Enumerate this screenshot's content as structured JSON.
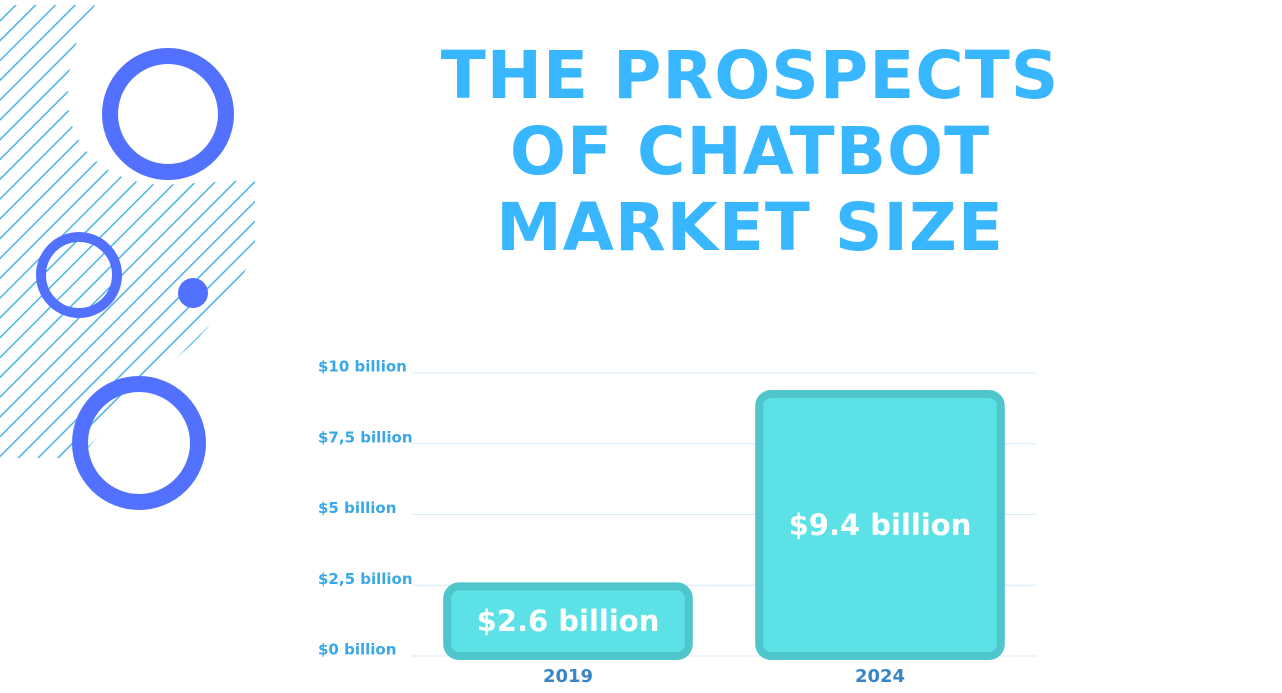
{
  "chart_data": {
    "type": "bar",
    "title": "THE PROSPECTS OF CHATBOT MARKET SIZE",
    "categories": [
      "2019",
      "2024"
    ],
    "values": [
      2.6,
      9.4
    ],
    "value_labels": [
      "$2.6 billion",
      "$9.4 billion"
    ],
    "color": "#5ce1e6",
    "ylim": [
      0,
      10
    ],
    "yticks": [
      {
        "value": 0,
        "label": "$0 billion"
      },
      {
        "value": 2.5,
        "label": "$2,5 billion"
      },
      {
        "value": 5,
        "label": "$5 billion"
      },
      {
        "value": 7.5,
        "label": "$7,5 billion"
      },
      {
        "value": 10,
        "label": "$10 billion"
      }
    ],
    "grid": true
  }
}
